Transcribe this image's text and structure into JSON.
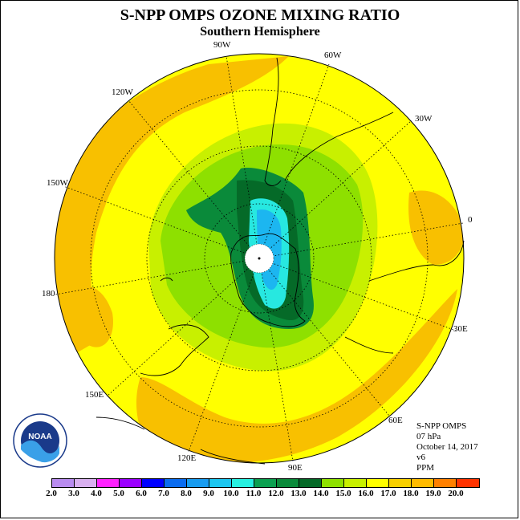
{
  "title": "S-NPP OMPS OZONE MIXING RATIO",
  "subtitle": "Southern Hemisphere",
  "longitude_labels": {
    "w90": "90W",
    "w60": "60W",
    "w30": "30W",
    "e0": "0",
    "w120": "120W",
    "w150": "150W",
    "d180": "180",
    "e30": "30E",
    "e60": "60E",
    "e90": "90E",
    "e120": "120E",
    "e150": "150E"
  },
  "info": {
    "instrument": "S-NPP OMPS",
    "level": "07 hPa",
    "date": "October 14, 2017",
    "version": "v6",
    "units": "PPM"
  },
  "logo_text": "NOAA",
  "colorbar": {
    "ticks": [
      "2.0",
      "3.0",
      "4.0",
      "5.0",
      "6.0",
      "7.0",
      "8.0",
      "9.0",
      "10.0",
      "11.0",
      "12.0",
      "13.0",
      "14.0",
      "15.0",
      "16.0",
      "17.0",
      "18.0",
      "19.0",
      "20.0"
    ],
    "colors": [
      "#b98cf0",
      "#d9b0f0",
      "#ff22ff",
      "#9b00ff",
      "#0000ff",
      "#0a6cf0",
      "#189cf0",
      "#1cc6f0",
      "#27f0e0",
      "#0ba050",
      "#0a8a3a",
      "#056a28",
      "#8ee000",
      "#c8f000",
      "#ffff00",
      "#f8d000",
      "#ffbb00",
      "#ff8000",
      "#ff3300",
      "#e60000",
      "#6a3a2a"
    ]
  },
  "colors": {
    "yellow": "#ffff00",
    "orange": "#f8c000",
    "light_green": "#c8f000",
    "green": "#8ee000",
    "dark_green": "#0b8a3a",
    "darkest_green": "#056a28",
    "cyan": "#27e8e0",
    "sky": "#1cb6f0"
  }
}
